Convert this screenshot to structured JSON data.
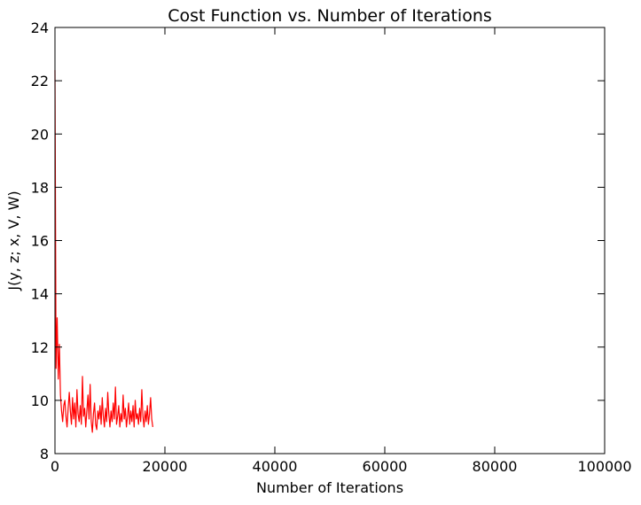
{
  "chart_data": {
    "type": "line",
    "title": "Cost Function vs. Number of Iterations",
    "xlabel": "Number of Iterations",
    "ylabel": "J(y, z; x, V, W)",
    "xlim": [
      0,
      100000
    ],
    "ylim": [
      8,
      24
    ],
    "xticks": [
      0,
      20000,
      40000,
      60000,
      80000,
      100000
    ],
    "yticks": [
      8,
      10,
      12,
      14,
      16,
      18,
      20,
      22,
      24
    ],
    "grid": false,
    "series": [
      {
        "name": "cost",
        "color": "#ff0000",
        "sample_step": 200,
        "x_start": 0,
        "values": [
          22.4,
          11.2,
          13.1,
          10.8,
          12.1,
          10.2,
          9.6,
          9.2,
          9.8,
          10.0,
          9.4,
          9.0,
          9.7,
          10.3,
          9.6,
          9.1,
          10.1,
          9.3,
          9.9,
          9.0,
          10.4,
          9.5,
          9.2,
          9.8,
          9.1,
          10.9,
          9.4,
          9.7,
          9.0,
          9.6,
          10.2,
          9.3,
          10.6,
          9.2,
          8.8,
          9.5,
          9.9,
          9.1,
          8.9,
          9.6,
          9.3,
          9.8,
          9.1,
          10.1,
          9.4,
          9.0,
          9.7,
          9.2,
          10.3,
          9.5,
          9.0,
          9.6,
          9.2,
          9.9,
          9.3,
          10.5,
          9.1,
          9.4,
          9.8,
          9.0,
          9.5,
          9.2,
          10.2,
          9.3,
          9.7,
          9.0,
          9.4,
          9.9,
          9.1,
          9.6,
          9.2,
          9.8,
          9.0,
          10.0,
          9.3,
          9.5,
          9.1,
          9.7,
          9.2,
          10.4,
          9.4,
          9.0,
          9.6,
          9.2,
          9.8,
          9.1,
          9.5,
          10.1,
          9.3,
          9.0
        ]
      }
    ]
  }
}
